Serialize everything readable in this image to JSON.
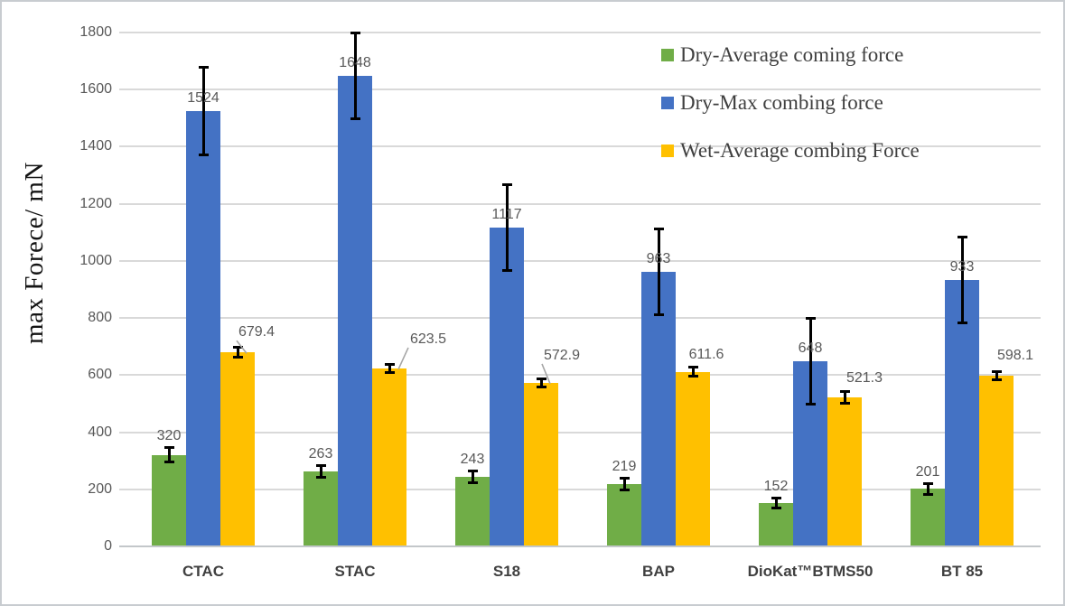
{
  "figure": {
    "background": "#FFFFFF",
    "border_color": "#C8CCD0"
  },
  "chart_data": {
    "type": "bar",
    "title": "",
    "xlabel": "",
    "ylabel": "max Forece/ mN",
    "categories": [
      "CTAC",
      "STAC",
      "S18",
      "BAP",
      "DioKat™BTMS50",
      "BT 85"
    ],
    "series": [
      {
        "name": "Dry-Average coming force",
        "color": "#70AD47",
        "values": [
          320,
          263,
          243,
          219,
          152,
          201
        ],
        "errors_estimated": [
          30,
          25,
          25,
          25,
          22,
          25
        ]
      },
      {
        "name": "Dry-Max combing force",
        "color": "#4472C4",
        "values": [
          1524,
          1648,
          1117,
          963,
          648,
          933
        ],
        "errors_estimated": [
          158,
          155,
          155,
          155,
          155,
          155
        ]
      },
      {
        "name": "Wet-Average combing Force",
        "color": "#FFC000",
        "values": [
          679.4,
          623.5,
          572.9,
          611.6,
          521.3,
          598.1
        ],
        "errors_estimated": [
          22,
          20,
          20,
          20,
          25,
          20
        ]
      }
    ],
    "ylim": [
      0,
      1800
    ],
    "yticks": [
      0,
      200,
      400,
      600,
      800,
      1000,
      1200,
      1400,
      1600,
      1800
    ],
    "grid": true,
    "data_labels": true,
    "error_bars": true,
    "legend_position": "top-right",
    "gridline_color": "#D9D9D9",
    "axis_line_color": "#C3C7CA",
    "error_bar_color": "#000000",
    "leader_line_color": "#A6A6A6",
    "tick_label_color": "#595959",
    "data_label_color": "#595959",
    "category_label_color": "#404040",
    "wet_label_layout": {
      "dx": [
        21,
        43,
        23,
        15,
        22,
        21
      ],
      "dy": [
        -8,
        -18,
        -16,
        -5,
        -7,
        -8
      ],
      "leader_lines": [
        true,
        true,
        true,
        false,
        false,
        false
      ]
    }
  }
}
